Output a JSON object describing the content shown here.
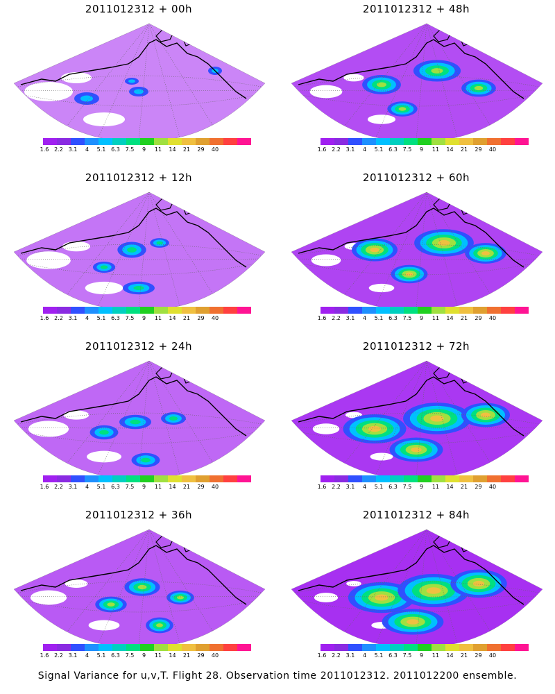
{
  "figure": {
    "caption": "Signal Variance for u,v,T. Flight 28. Observation time 2011012312. 2011012200 ensemble.",
    "colorbar": {
      "colors": [
        "#a020f0",
        "#8a2be2",
        "#3050ff",
        "#1e90ff",
        "#00c0ff",
        "#00d0c0",
        "#00e080",
        "#20d020",
        "#a0e040",
        "#e0e030",
        "#f0c040",
        "#e0a030",
        "#f07030",
        "#ff4040",
        "#ff1493"
      ],
      "labels": [
        "1.6",
        "2.2",
        "3.1",
        "4",
        "5.1",
        "6.3",
        "7.5",
        "9",
        "11",
        "14",
        "21",
        "29",
        "40"
      ]
    },
    "panels": [
      {
        "title": "2011012312 + 00h",
        "level": 0.0
      },
      {
        "title": "2011012312 + 48h",
        "level": 0.55
      },
      {
        "title": "2011012312 + 12h",
        "level": 0.15
      },
      {
        "title": "2011012312 + 60h",
        "level": 0.65
      },
      {
        "title": "2011012312 + 24h",
        "level": 0.28
      },
      {
        "title": "2011012312 + 72h",
        "level": 0.75
      },
      {
        "title": "2011012312 + 36h",
        "level": 0.42
      },
      {
        "title": "2011012312 + 84h",
        "level": 0.85
      }
    ]
  }
}
